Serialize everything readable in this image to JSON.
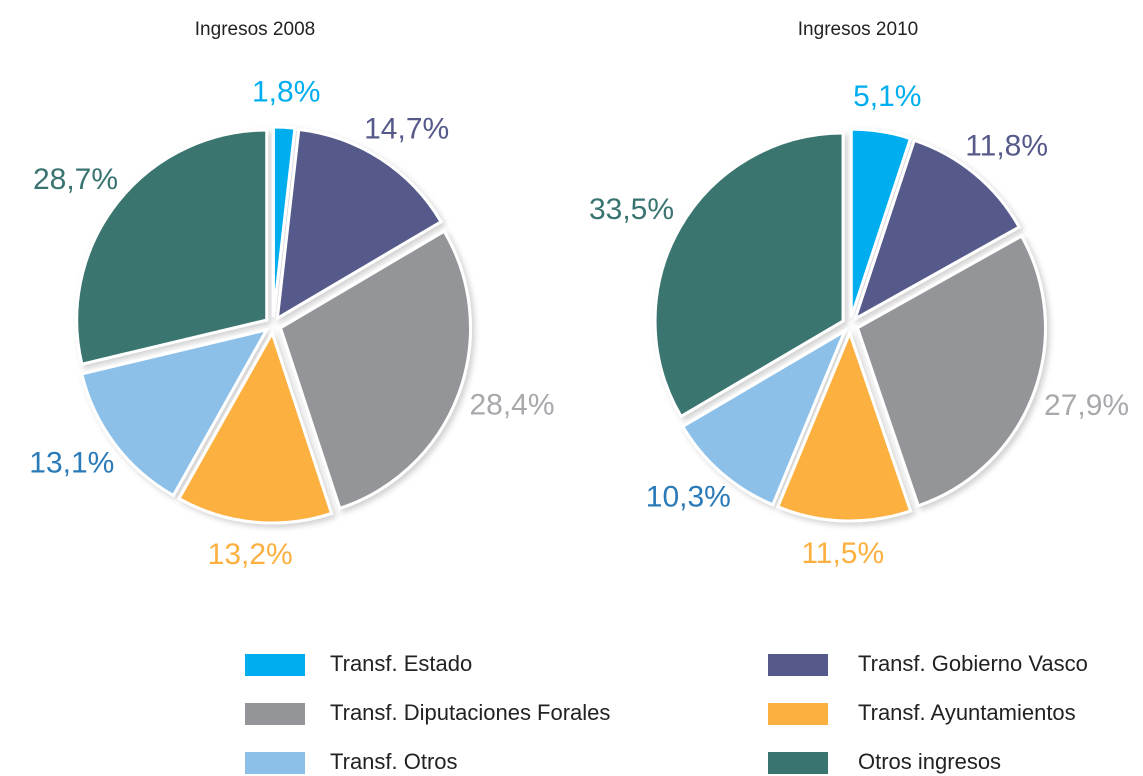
{
  "legend": {
    "labels": [
      "Transf. Estado",
      "Transf. Gobierno Vasco",
      "Transf. Diputaciones Forales",
      "Transf. Ayuntamientos",
      "Transf. Otros",
      "Otros ingresos"
    ],
    "colors": [
      "#00aeef",
      "#565a8a",
      "#939598",
      "#fbb040",
      "#8dc0e8",
      "#3a7470"
    ]
  },
  "chart_data": [
    {
      "type": "pie",
      "title": "Ingresos 2008",
      "values": [
        1.8,
        14.7,
        28.4,
        13.2,
        13.1,
        28.7
      ],
      "value_labels": [
        "1,8%",
        "14,7%",
        "28,4%",
        "13,2%",
        "13,1%",
        "28,7%"
      ]
    },
    {
      "type": "pie",
      "title": "Ingresos 2010",
      "values": [
        5.1,
        11.8,
        27.9,
        11.5,
        10.3,
        33.5
      ],
      "value_labels": [
        "5,1%",
        "11,8%",
        "27,9%",
        "11,5%",
        "10,3%",
        "33,5%"
      ]
    }
  ]
}
